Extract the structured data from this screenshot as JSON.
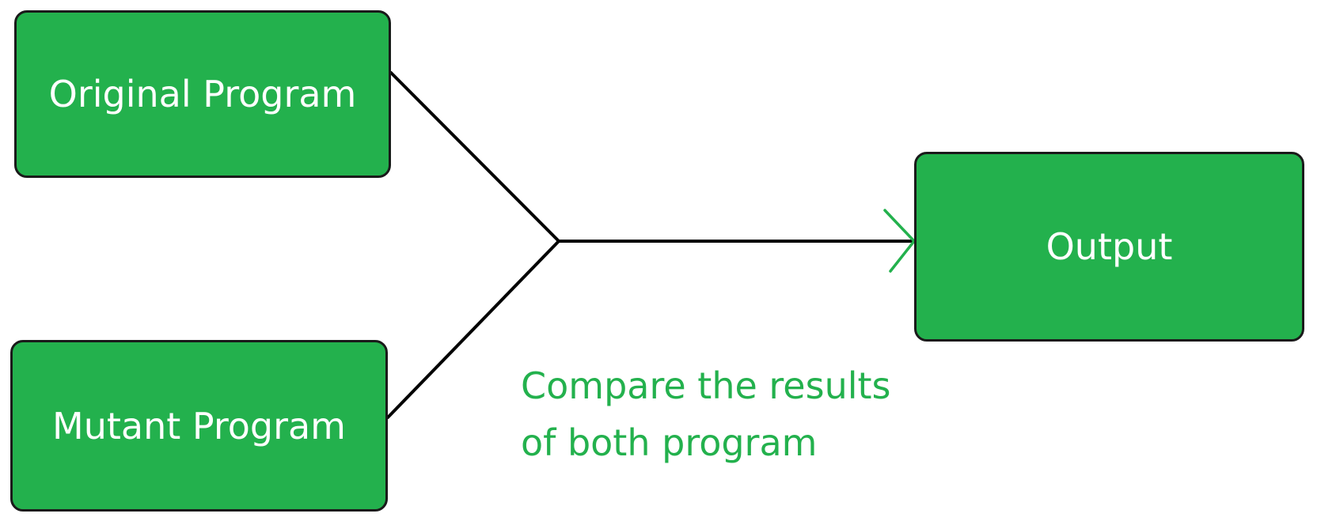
{
  "colors": {
    "node_fill": "#23b14d",
    "node_border": "#1a1a1a",
    "node_text": "#ffffff",
    "connector": "#000000",
    "arrowhead": "#23b14d",
    "caption_text": "#23b14d",
    "background": "#ffffff"
  },
  "nodes": {
    "original": {
      "label": "Original Program"
    },
    "mutant": {
      "label": "Mutant Program"
    },
    "output": {
      "label": "Output"
    }
  },
  "edges": [
    {
      "from": "original",
      "to": "junction"
    },
    {
      "from": "mutant",
      "to": "junction"
    },
    {
      "from": "junction",
      "to": "output"
    }
  ],
  "caption": {
    "line1": "Compare the results",
    "line2": "of both program"
  }
}
